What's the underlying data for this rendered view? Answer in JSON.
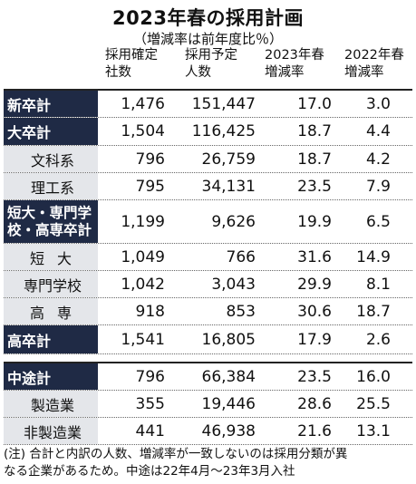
{
  "title": "2023年春の採用計画",
  "subtitle": "（増減率は前年度比％）",
  "headers": {
    "c1": [
      "採用確定",
      "社数"
    ],
    "c2": [
      "採用予定",
      "人数"
    ],
    "c3": [
      "2023年春",
      "増減率"
    ],
    "c4": [
      "2022年春",
      "増減率"
    ]
  },
  "rows": [
    {
      "label": "新卒計",
      "companies": "1,476",
      "people": "151,447",
      "r2023": "17.0",
      "r2022": "3.0"
    },
    {
      "label": "大卒計",
      "companies": "1,504",
      "people": "116,425",
      "r2023": "18.7",
      "r2022": "4.4"
    },
    {
      "label": "文科系",
      "companies": "796",
      "people": "26,759",
      "r2023": "18.7",
      "r2022": "4.2"
    },
    {
      "label": "理工系",
      "companies": "795",
      "people": "34,131",
      "r2023": "23.5",
      "r2022": "7.9"
    },
    {
      "label_lines": [
        "短大・専門学",
        "校・高専卒計"
      ],
      "companies": "1,199",
      "people": "9,626",
      "r2023": "19.9",
      "r2022": "6.5"
    },
    {
      "label": "短大",
      "companies": "1,049",
      "people": "766",
      "r2023": "31.6",
      "r2022": "14.9"
    },
    {
      "label": "専門学校",
      "companies": "1,042",
      "people": "3,043",
      "r2023": "29.9",
      "r2022": "8.1"
    },
    {
      "label": "高専",
      "companies": "918",
      "people": "853",
      "r2023": "30.6",
      "r2022": "18.7"
    },
    {
      "label": "高卒計",
      "companies": "1,541",
      "people": "16,805",
      "r2023": "17.9",
      "r2022": "2.6"
    },
    {
      "label": "中途計",
      "companies": "796",
      "people": "66,384",
      "r2023": "23.5",
      "r2022": "16.0"
    },
    {
      "label": "製造業",
      "companies": "355",
      "people": "19,446",
      "r2023": "28.6",
      "r2022": "25.5"
    },
    {
      "label": "非製造業",
      "companies": "441",
      "people": "46,938",
      "r2023": "21.6",
      "r2022": "13.1"
    }
  ],
  "note": [
    "(注) 合計と内訳の人数、増減率が一致しないのは採用分類が異",
    "なる企業があるため。中途は22年4月～23年3月入社"
  ],
  "colors": {
    "header_cell_bg": "#1f2a45",
    "sub_cell_bg": "#e4e6ea"
  }
}
